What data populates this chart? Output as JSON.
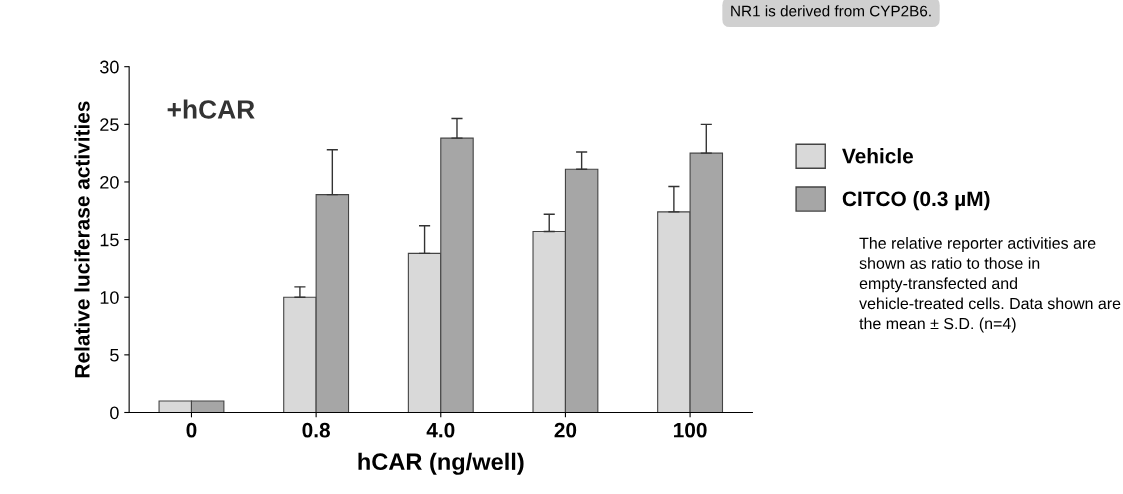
{
  "chart_data": {
    "type": "bar",
    "xlabel": "hCAR (ng/well)",
    "ylabel": "Relative luciferase activities",
    "categories": [
      "0",
      "0.8",
      "4.0",
      "20",
      "100"
    ],
    "series": [
      {
        "name": "Vehicle",
        "color": "#d9d9d9",
        "values": [
          1.0,
          10.0,
          13.8,
          15.7,
          17.4
        ],
        "errors": [
          null,
          [
            10.0,
            10.9
          ],
          [
            13.8,
            16.2
          ],
          [
            15.7,
            17.2
          ],
          [
            17.4,
            19.6
          ]
        ]
      },
      {
        "name": "CITCO (0.3 µM)",
        "color": "#a6a6a6",
        "values": [
          1.0,
          18.9,
          23.8,
          21.1,
          22.5
        ],
        "errors": [
          null,
          [
            18.9,
            22.8
          ],
          [
            23.8,
            25.5
          ],
          [
            21.1,
            22.6
          ],
          [
            22.5,
            25.0
          ]
        ]
      }
    ],
    "ylim": [
      0,
      30
    ],
    "yticks": [
      0,
      5,
      10,
      15,
      20,
      25,
      30
    ],
    "grid": false,
    "legend": "right",
    "annotations": [
      "+hCAR",
      "NR1 is derived from CYP2B6.",
      "The relative reporter activities are shown as ratio to those in empty-transfected and vehicle-treated cells. Data shown are the mean ± S.D. (n=4)"
    ]
  }
}
